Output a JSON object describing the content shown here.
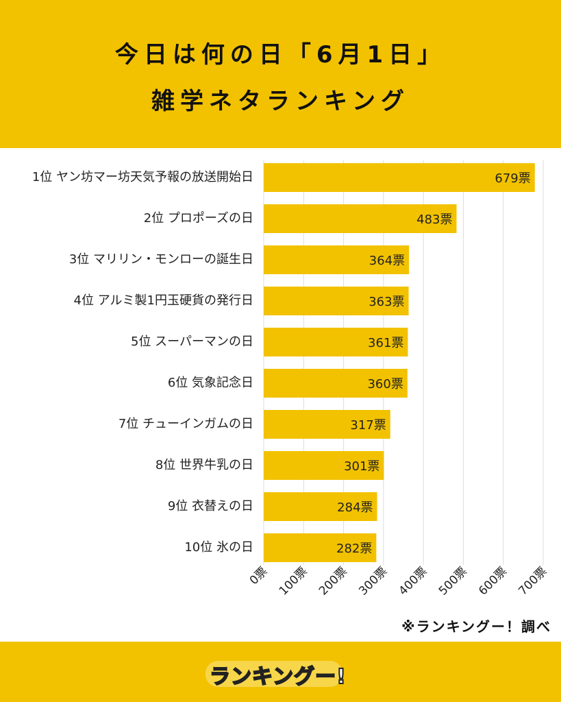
{
  "header": {
    "title_line1": "今日は何の日「6月1日」",
    "title_line2": "雑学ネタランキング"
  },
  "credit": "※ランキングー！調べ",
  "logo_text": "ランキングー!",
  "colors": {
    "background": "#f2c200",
    "bar": "#f2c200",
    "panel": "#ffffff",
    "text": "#222222"
  },
  "chart_data": {
    "type": "bar",
    "orientation": "horizontal",
    "categories": [
      "1位 ヤン坊マー坊天気予報の放送開始日",
      "2位 プロポーズの日",
      "3位 マリリン・モンローの誕生日",
      "4位 アルミ製1円玉硬貨の発行日",
      "5位 スーパーマンの日",
      "6位 気象記念日",
      "7位 チューインガムの日",
      "8位 世界牛乳の日",
      "9位 衣替えの日",
      "10位 氷の日"
    ],
    "values": [
      679,
      483,
      364,
      363,
      361,
      360,
      317,
      301,
      284,
      282
    ],
    "value_labels": [
      "679票",
      "483票",
      "364票",
      "363票",
      "361票",
      "360票",
      "317票",
      "301票",
      "284票",
      "282票"
    ],
    "x_ticks": [
      "0票",
      "100票",
      "200票",
      "300票",
      "400票",
      "500票",
      "600票",
      "700票"
    ],
    "x_tick_values": [
      0,
      100,
      200,
      300,
      400,
      500,
      600,
      700
    ],
    "xlim": [
      0,
      700
    ],
    "grid": true
  }
}
